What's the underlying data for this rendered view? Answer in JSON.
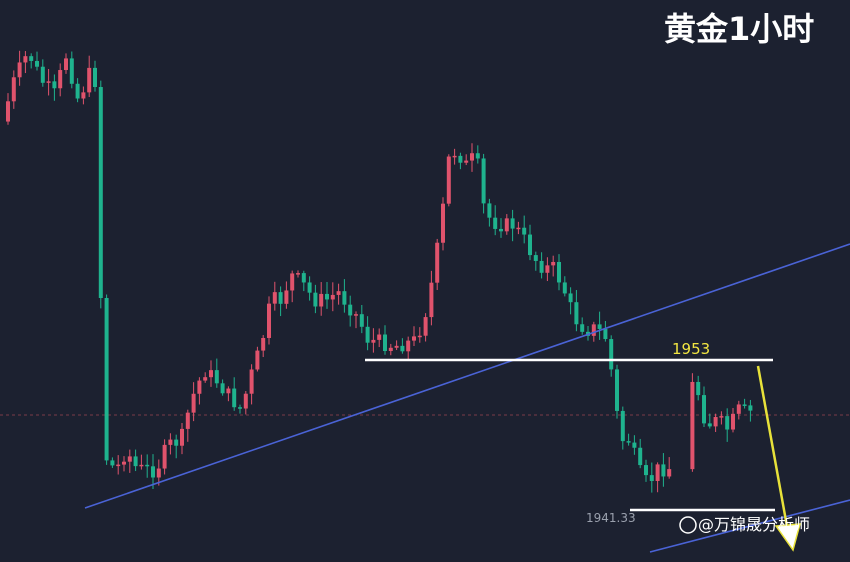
{
  "title": "黄金1小时",
  "watermark": "@万锦晟分析师",
  "resistance_label": "1953",
  "low_marker_label": "1941.33",
  "colors": {
    "background": "#1c2130",
    "up": "#e0536c",
    "down": "#1fb38e",
    "trendline": "#4a63d6",
    "level": "#ffffff",
    "arrow": "#e8e23a",
    "label": "#f2e642"
  },
  "chart_data": {
    "type": "candlestick",
    "title": "黄金1小时",
    "annotations": [
      {
        "type": "horizontal-level",
        "label": "1953"
      },
      {
        "type": "price-marker",
        "label": "1941.33"
      },
      {
        "type": "arrow",
        "direction": "down"
      }
    ],
    "trendlines": 2,
    "grid": false,
    "legend": "none"
  }
}
